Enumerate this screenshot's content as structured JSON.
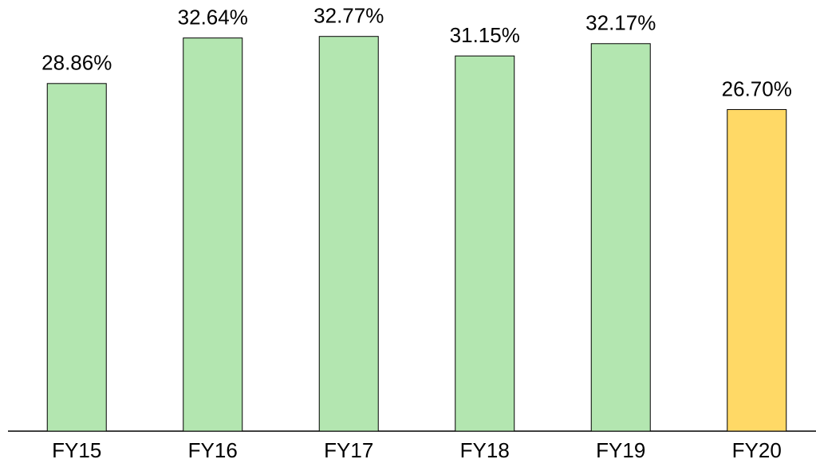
{
  "chart_data": {
    "type": "bar",
    "categories": [
      "FY15",
      "FY16",
      "FY17",
      "FY18",
      "FY19",
      "FY20"
    ],
    "values": [
      28.86,
      32.64,
      32.77,
      31.15,
      32.17,
      26.7
    ],
    "value_labels": [
      "28.86%",
      "32.64%",
      "32.77%",
      "31.15%",
      "32.17%",
      "26.70%"
    ],
    "colors": [
      "#b3e6b0",
      "#b3e6b0",
      "#b3e6b0",
      "#b3e6b0",
      "#b3e6b0",
      "#ffd966"
    ],
    "ylim": [
      0,
      35
    ]
  }
}
